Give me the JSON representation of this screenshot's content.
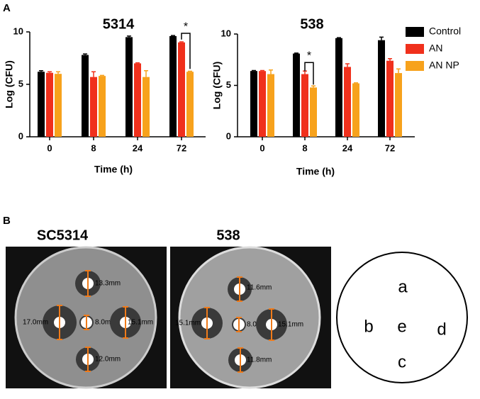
{
  "panels": {
    "a": "A",
    "b": "B"
  },
  "chart_data": [
    {
      "type": "bar",
      "title": "5314",
      "x_label": "Time (h)",
      "y_label": "Log (CFU)",
      "categories": [
        "0",
        "8",
        "24",
        "72"
      ],
      "ylim": [
        0,
        10
      ],
      "yticks": [
        0,
        5,
        10
      ],
      "series": [
        {
          "name": "Control",
          "color": "#000000",
          "values": [
            6.2,
            7.8,
            9.5,
            9.6
          ],
          "errors": [
            0.1,
            0.1,
            0.1,
            0.05
          ]
        },
        {
          "name": "AN",
          "color": "#f0301c",
          "values": [
            6.1,
            5.7,
            7.0,
            9.0
          ],
          "errors": [
            0.1,
            0.5,
            0.05,
            0.05
          ]
        },
        {
          "name": "AN NP",
          "color": "#f7a21c",
          "values": [
            6.0,
            5.8,
            5.7,
            6.2
          ],
          "errors": [
            0.2,
            0.05,
            0.6,
            0.05
          ]
        }
      ],
      "significance": [
        {
          "label": "*",
          "category": "72"
        }
      ]
    },
    {
      "type": "bar",
      "title": "538",
      "x_label": "Time (h)",
      "y_label": "Log (CFU)",
      "categories": [
        "0",
        "8",
        "24",
        "72"
      ],
      "ylim": [
        0,
        10
      ],
      "yticks": [
        0,
        5,
        10
      ],
      "legend": "right",
      "series": [
        {
          "name": "Control",
          "color": "#000000",
          "values": [
            6.4,
            8.1,
            9.6,
            9.4
          ],
          "errors": [
            0.05,
            0.05,
            0.05,
            0.3
          ]
        },
        {
          "name": "AN",
          "color": "#f0301c",
          "values": [
            6.4,
            6.1,
            6.8,
            7.4
          ],
          "errors": [
            0.05,
            0.3,
            0.3,
            0.2
          ]
        },
        {
          "name": "AN NP",
          "color": "#f7a21c",
          "values": [
            6.1,
            4.8,
            5.2,
            6.2
          ],
          "errors": [
            0.4,
            0.15,
            0.05,
            0.4
          ]
        }
      ],
      "significance": [
        {
          "label": "*",
          "category": "8"
        }
      ]
    }
  ],
  "panel_b": {
    "plates": [
      {
        "title": "SC5314",
        "measurements": [
          "13.3mm",
          "17.0mm",
          "8.0mm",
          "15.1mm",
          "12.0mm"
        ]
      },
      {
        "title": "538",
        "measurements": [
          "11.6mm",
          "15.1mm",
          "8.0mm",
          "15.1mm",
          "11.8mm"
        ]
      }
    ],
    "diagram": {
      "letters": [
        "a",
        "b",
        "e",
        "d",
        "c"
      ]
    }
  }
}
